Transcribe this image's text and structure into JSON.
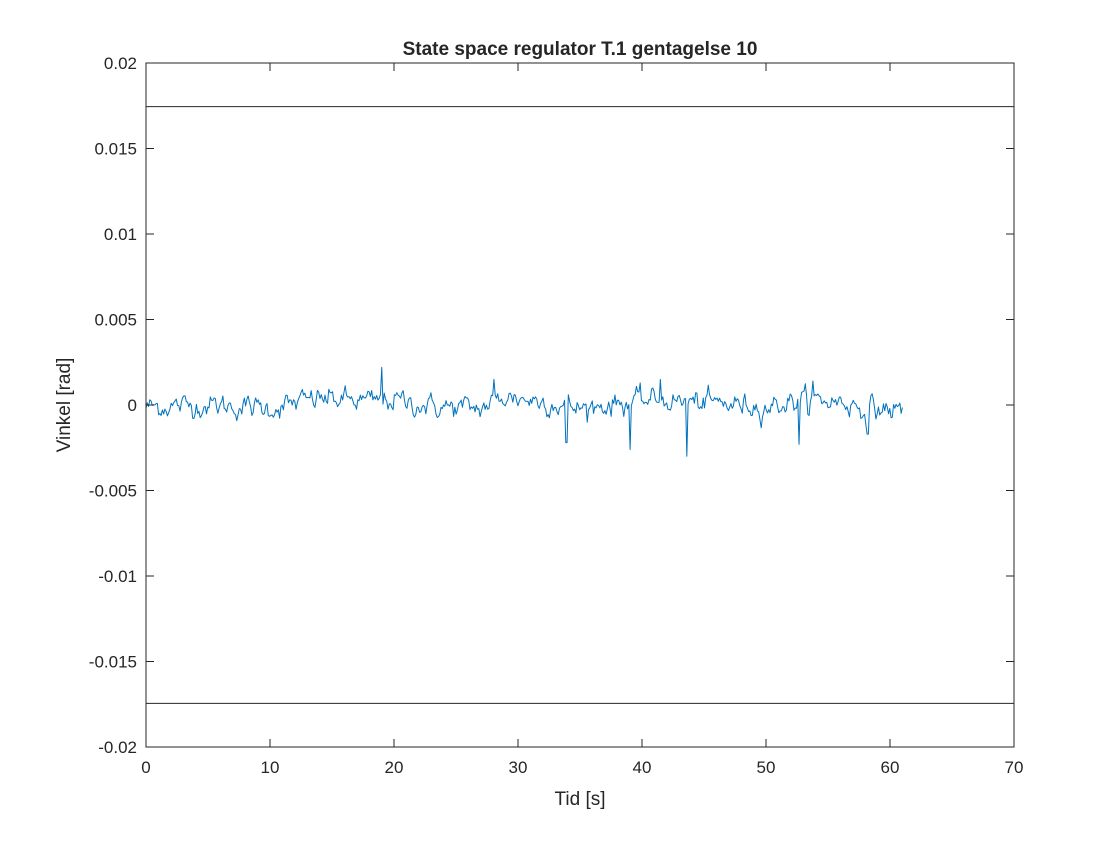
{
  "chart_data": {
    "type": "line",
    "title": "State space regulator T.1 gentagelse 10",
    "xlabel": "Tid [s]",
    "ylabel": "Vinkel [rad]",
    "xlim": [
      0,
      70
    ],
    "ylim": [
      -0.02,
      0.02
    ],
    "x_ticks": [
      0,
      10,
      20,
      30,
      40,
      50,
      60,
      70
    ],
    "y_ticks": [
      0.02,
      0.015,
      0.01,
      0.005,
      0,
      -0.005,
      -0.01,
      -0.015,
      -0.02
    ],
    "x_tick_labels": [
      "0",
      "10",
      "20",
      "30",
      "40",
      "50",
      "60",
      "70"
    ],
    "y_tick_labels": [
      "0.02",
      "0.015",
      "0.01",
      "0.005",
      "0",
      "-0.005",
      "-0.01",
      "-0.015",
      "-0.02"
    ],
    "grid": false,
    "reference_lines": [
      {
        "name": "upper-limit",
        "y": 0.01745,
        "color": "#262626"
      },
      {
        "name": "lower-limit",
        "y": -0.01745,
        "color": "#262626"
      }
    ],
    "series": [
      {
        "name": "Vinkel",
        "color": "#0072bd",
        "x_range": [
          0,
          61
        ],
        "samples": 600,
        "mean": 0,
        "noise_std": 0.00045,
        "baseline_drift": [
          [
            0,
            -0.0001
          ],
          [
            5,
            0.0
          ],
          [
            10,
            -0.0002
          ],
          [
            14,
            0.0004
          ],
          [
            18,
            0.0002
          ],
          [
            20,
            0.0003
          ],
          [
            23,
            -0.0001
          ],
          [
            27,
            -0.0002
          ],
          [
            29,
            0.0005
          ],
          [
            32,
            0.0002
          ],
          [
            35,
            -0.0002
          ],
          [
            38,
            0.0001
          ],
          [
            41,
            0.0003
          ],
          [
            43,
            0.0002
          ],
          [
            46,
            0.0001
          ],
          [
            50,
            -0.0001
          ],
          [
            53,
            0.0003
          ],
          [
            56,
            0.0002
          ],
          [
            58,
            -0.0002
          ],
          [
            61,
            -0.0003
          ]
        ],
        "spikes": [
          {
            "x": 19.0,
            "y": 0.0022
          },
          {
            "x": 28.1,
            "y": 0.0015
          },
          {
            "x": 33.9,
            "y": -0.0022
          },
          {
            "x": 39.0,
            "y": -0.0026
          },
          {
            "x": 41.5,
            "y": 0.0015
          },
          {
            "x": 43.6,
            "y": -0.003
          },
          {
            "x": 52.7,
            "y": -0.0023
          },
          {
            "x": 53.8,
            "y": 0.0014
          },
          {
            "x": 58.2,
            "y": -0.0017
          }
        ]
      }
    ]
  }
}
